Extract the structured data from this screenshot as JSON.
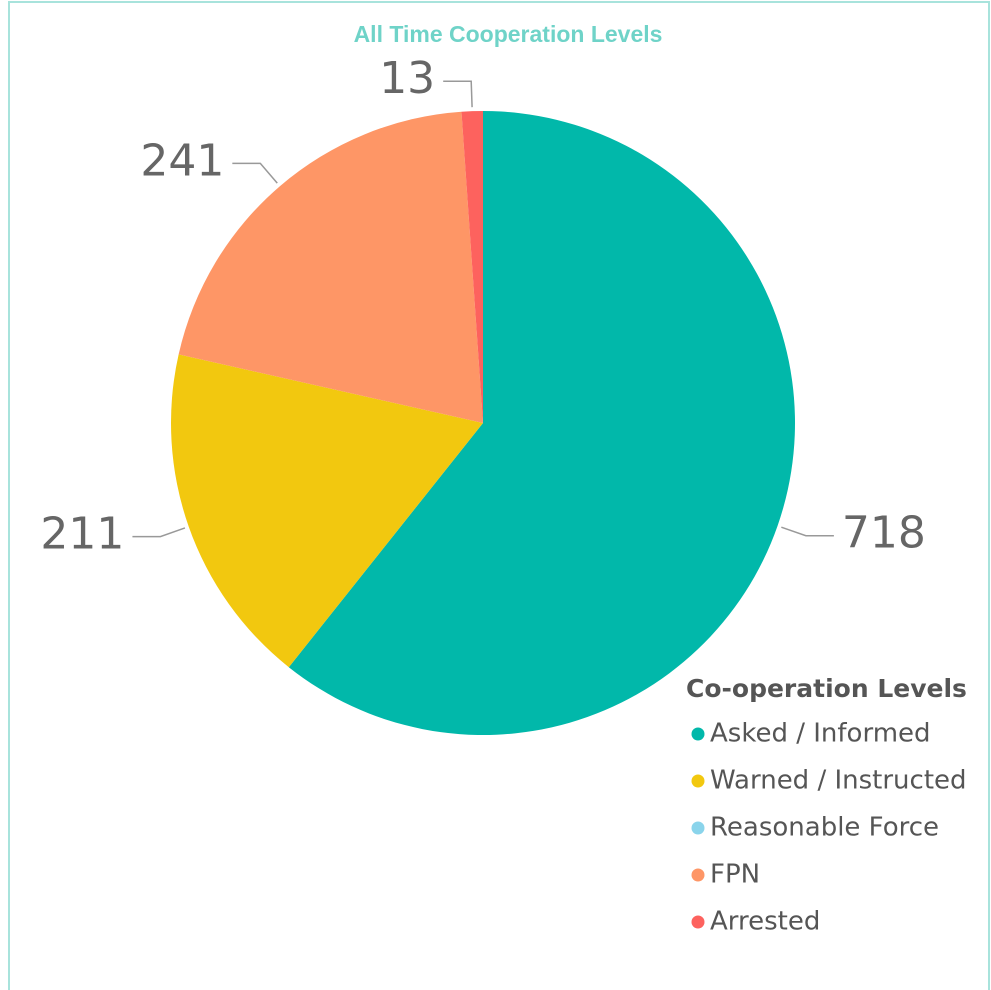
{
  "chart_data": {
    "type": "pie",
    "title": "All Time Cooperation Levels",
    "legend_title": "Co-operation Levels",
    "categories": [
      "Asked / Informed",
      "Warned / Instructed",
      "Reasonable Force",
      "FPN",
      "Arrested"
    ],
    "values": [
      718,
      211,
      0,
      241,
      13
    ],
    "colors": [
      "#01b8aa",
      "#f2c80f",
      "#8ad4eb",
      "#fe9666",
      "#fd625e"
    ],
    "legend": "bottom-right"
  }
}
